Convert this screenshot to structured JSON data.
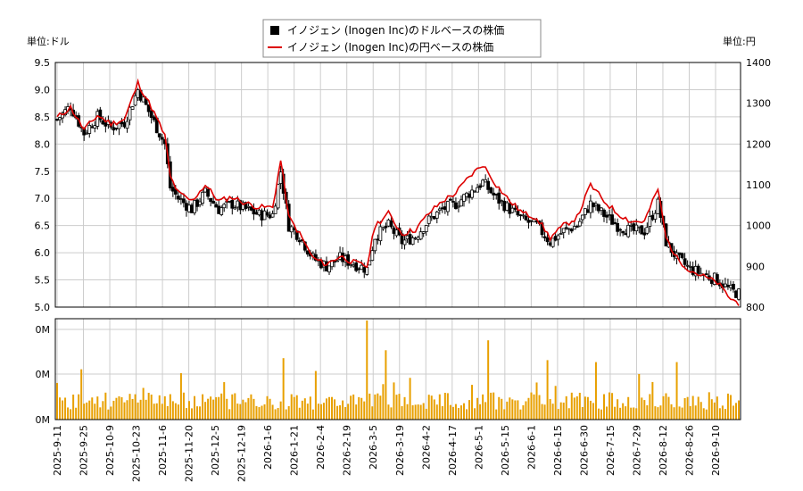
{
  "chart_data": {
    "type": "candlestick+line+bar",
    "legend": {
      "usd_label": "イノジェン (Inogen Inc)のドルベースの株価",
      "jpy_label": "イノジェン (Inogen Inc)の円ベースの株価",
      "placement": "top-center"
    },
    "unit_left": "単位:ドル",
    "unit_right": "単位:円",
    "y_left": {
      "min": 5.0,
      "max": 9.5,
      "ticks": [
        "5.0",
        "5.5",
        "6.0",
        "6.5",
        "7.0",
        "7.5",
        "8.0",
        "8.5",
        "9.0",
        "9.5"
      ]
    },
    "y_right": {
      "min": 800,
      "max": 1400,
      "ticks": [
        "800",
        "900",
        "1000",
        "1100",
        "1200",
        "1300",
        "1400"
      ]
    },
    "volume_ticks": [
      "0M",
      "0M",
      "0M"
    ],
    "x_labels": [
      "2025-9-11",
      "2025-9-25",
      "2025-10-9",
      "2025-10-23",
      "2025-11-6",
      "2025-11-20",
      "2025-12-5",
      "2025-12-19",
      "2026-1-6",
      "2026-1-21",
      "2026-2-4",
      "2026-2-19",
      "2026-3-5",
      "2026-3-19",
      "2026-4-2",
      "2026-4-17",
      "2026-5-1",
      "2026-5-15",
      "2026-6-1",
      "2026-6-15",
      "2026-6-30",
      "2026-7-15",
      "2026-7-29",
      "2026-8-12",
      "2026-8-26",
      "2026-9-10"
    ],
    "grid": true,
    "colors": {
      "candle": "#000000",
      "jpy_line": "#dd0000",
      "volume": "#e8a000",
      "grid": "#cccccc"
    },
    "usd_close_keypoints": [
      [
        0,
        8.45
      ],
      [
        5,
        8.7
      ],
      [
        10,
        8.2
      ],
      [
        15,
        8.5
      ],
      [
        20,
        8.3
      ],
      [
        25,
        8.4
      ],
      [
        30,
        9.0
      ],
      [
        35,
        8.5
      ],
      [
        40,
        8.0
      ],
      [
        42,
        7.2
      ],
      [
        45,
        7.0
      ],
      [
        50,
        6.8
      ],
      [
        55,
        7.1
      ],
      [
        60,
        6.8
      ],
      [
        65,
        6.9
      ],
      [
        70,
        6.8
      ],
      [
        75,
        6.7
      ],
      [
        80,
        6.7
      ],
      [
        83,
        7.5
      ],
      [
        86,
        6.5
      ],
      [
        90,
        6.3
      ],
      [
        95,
        5.9
      ],
      [
        100,
        5.75
      ],
      [
        105,
        5.9
      ],
      [
        110,
        5.8
      ],
      [
        115,
        5.7
      ],
      [
        118,
        6.3
      ],
      [
        123,
        6.5
      ],
      [
        128,
        6.2
      ],
      [
        133,
        6.3
      ],
      [
        138,
        6.6
      ],
      [
        143,
        6.8
      ],
      [
        148,
        6.9
      ],
      [
        153,
        7.1
      ],
      [
        158,
        7.3
      ],
      [
        163,
        7.0
      ],
      [
        168,
        6.8
      ],
      [
        173,
        6.6
      ],
      [
        178,
        6.5
      ],
      [
        183,
        6.2
      ],
      [
        188,
        6.4
      ],
      [
        193,
        6.5
      ],
      [
        198,
        6.9
      ],
      [
        203,
        6.7
      ],
      [
        208,
        6.5
      ],
      [
        213,
        6.4
      ],
      [
        218,
        6.4
      ],
      [
        223,
        6.9
      ],
      [
        226,
        6.2
      ],
      [
        230,
        5.9
      ],
      [
        235,
        5.7
      ],
      [
        240,
        5.6
      ],
      [
        245,
        5.5
      ],
      [
        250,
        5.3
      ],
      [
        253,
        5.25
      ]
    ],
    "jpy_close_keypoints": [
      [
        0,
        1265
      ],
      [
        5,
        1290
      ],
      [
        10,
        1235
      ],
      [
        15,
        1270
      ],
      [
        20,
        1250
      ],
      [
        25,
        1260
      ],
      [
        30,
        1350
      ],
      [
        35,
        1290
      ],
      [
        40,
        1220
      ],
      [
        42,
        1120
      ],
      [
        45,
        1080
      ],
      [
        50,
        1060
      ],
      [
        55,
        1100
      ],
      [
        60,
        1060
      ],
      [
        65,
        1070
      ],
      [
        70,
        1055
      ],
      [
        75,
        1045
      ],
      [
        80,
        1045
      ],
      [
        83,
        1160
      ],
      [
        86,
        1020
      ],
      [
        90,
        980
      ],
      [
        95,
        920
      ],
      [
        100,
        905
      ],
      [
        105,
        925
      ],
      [
        110,
        910
      ],
      [
        115,
        900
      ],
      [
        118,
        1000
      ],
      [
        123,
        1030
      ],
      [
        128,
        980
      ],
      [
        133,
        990
      ],
      [
        138,
        1030
      ],
      [
        143,
        1060
      ],
      [
        148,
        1080
      ],
      [
        153,
        1120
      ],
      [
        158,
        1150
      ],
      [
        163,
        1100
      ],
      [
        168,
        1060
      ],
      [
        173,
        1030
      ],
      [
        178,
        1020
      ],
      [
        183,
        970
      ],
      [
        188,
        1000
      ],
      [
        193,
        1020
      ],
      [
        198,
        1100
      ],
      [
        203,
        1060
      ],
      [
        208,
        1030
      ],
      [
        213,
        1010
      ],
      [
        218,
        1010
      ],
      [
        223,
        1090
      ],
      [
        226,
        970
      ],
      [
        230,
        920
      ],
      [
        235,
        890
      ],
      [
        240,
        875
      ],
      [
        245,
        860
      ],
      [
        250,
        820
      ],
      [
        253,
        810
      ]
    ],
    "volume_spikes": [
      [
        115,
        1.0
      ],
      [
        122,
        0.7
      ],
      [
        84,
        0.62
      ],
      [
        160,
        0.8
      ],
      [
        182,
        0.6
      ],
      [
        200,
        0.58
      ],
      [
        230,
        0.58
      ]
    ]
  }
}
